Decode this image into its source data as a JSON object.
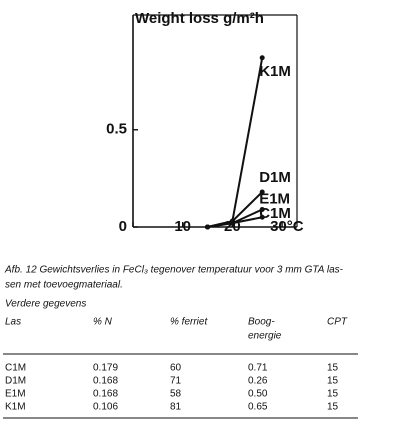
{
  "chart_data": {
    "type": "line",
    "title": "Weight loss g/m²h",
    "x": [
      15,
      20,
      26
    ],
    "series": [
      {
        "name": "K1M",
        "color": "#111111",
        "values": [
          0,
          0.03,
          0.87
        ]
      },
      {
        "name": "D1M",
        "color": "#111111",
        "values": [
          0,
          0.03,
          0.18
        ]
      },
      {
        "name": "E1M",
        "color": "#111111",
        "values": [
          0,
          0.02,
          0.09
        ]
      },
      {
        "name": "C1M",
        "color": "#111111",
        "values": [
          0,
          0.02,
          0.05
        ]
      }
    ],
    "xlim": [
      0,
      33
    ],
    "xticks": [
      0,
      10,
      20,
      {
        "value": 30,
        "label": "30°C"
      }
    ],
    "ylim": [
      0,
      1.09
    ],
    "yticks": [
      0,
      0.5
    ],
    "grid": false
  },
  "caption": [
    "Afb. 12 Gewichtsverlies in FeCl₃ tegenover temperatuur voor 3 mm GTA las-",
    "sen met toevoegmateriaal."
  ],
  "table": {
    "title": "Verdere gegevens",
    "headers": [
      "Las",
      "% N",
      "% ferriet",
      [
        "Boog-",
        "energie"
      ],
      "CPT"
    ],
    "rows": [
      [
        "C1M",
        "0.179",
        "60",
        "0.71",
        "15"
      ],
      [
        "D1M",
        "0.168",
        "71",
        "0.26",
        "15"
      ],
      [
        "E1M",
        "0.168",
        "58",
        "0.50",
        "15"
      ],
      [
        "K1M",
        "0.106",
        "81",
        "0.65",
        "15"
      ]
    ]
  }
}
